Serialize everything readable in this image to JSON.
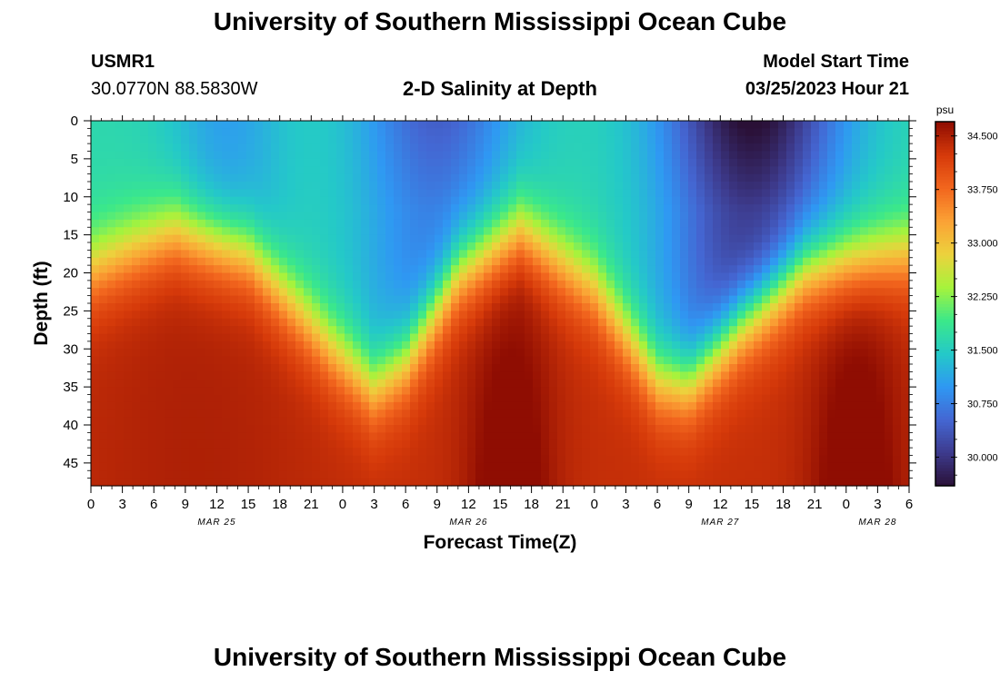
{
  "page": {
    "title": "University of Southern Mississippi Ocean Cube",
    "footer_title": "University of Southern Mississippi Ocean Cube"
  },
  "station": {
    "id": "USMR1",
    "coords": "30.0770N  88.5830W"
  },
  "model_start": {
    "label": "Model Start Time",
    "value": "03/25/2023 Hour 21"
  },
  "chart_data": {
    "type": "heatmap",
    "title": "2-D Salinity at Depth",
    "xlabel": "Forecast Time(Z)",
    "ylabel": "Depth (ft)",
    "x_tick_labels": [
      "0",
      "3",
      "6",
      "9",
      "12",
      "15",
      "18",
      "21",
      "0",
      "3",
      "6",
      "9",
      "12",
      "15",
      "18",
      "21",
      "0",
      "3",
      "6",
      "9",
      "12",
      "15",
      "18",
      "21",
      "0",
      "3",
      "6"
    ],
    "date_labels": [
      {
        "label": "MAR 25",
        "hours": 12
      },
      {
        "label": "MAR 26",
        "hours": 36
      },
      {
        "label": "MAR 27",
        "hours": 60
      },
      {
        "label": "MAR 28",
        "hours": 75
      }
    ],
    "xlim_hours": [
      0,
      78
    ],
    "ylim_ft": [
      0,
      48
    ],
    "y_ticks": [
      0,
      5,
      10,
      15,
      20,
      25,
      30,
      35,
      40,
      45
    ],
    "y_tick_labels": [
      "0",
      "5",
      "10",
      "15",
      "20",
      "25",
      "30",
      "35",
      "40",
      "45"
    ],
    "colorbar": {
      "unit": "psu",
      "range": [
        29.6,
        34.7
      ],
      "ticks": [
        34.5,
        33.75,
        33.0,
        32.25,
        31.5,
        30.75,
        30.0
      ],
      "tick_labels": [
        "34.500",
        "33.750",
        "33.000",
        "32.250",
        "31.500",
        "30.750",
        "30.000"
      ],
      "colors": [
        "#2a1036",
        "#3d3a8c",
        "#4466d2",
        "#2f98f3",
        "#24c9c8",
        "#3be88a",
        "#a6f33c",
        "#ecd23d",
        "#fba235",
        "#f2661e",
        "#d63a0a",
        "#8f0d02"
      ]
    },
    "interface_profile": {
      "x_hours": [
        0,
        8,
        15,
        23,
        27,
        30,
        35,
        41,
        48,
        54,
        57,
        62,
        68,
        72,
        78
      ],
      "mid_depth_ft": [
        19.5,
        14.5,
        17.5,
        30,
        35,
        31.5,
        20,
        14.5,
        22,
        34,
        34.5,
        26.5,
        19.5,
        18.5,
        17.5
      ]
    },
    "surface_fresh_minima": [
      {
        "hours": 33,
        "depth_ft": 1,
        "value": 30.0
      },
      {
        "hours": 63,
        "depth_ft": 2,
        "value": 29.7
      }
    ],
    "deep_salinity_maxima": [
      {
        "hours": 40,
        "depth_ft": 44,
        "value": 34.7
      },
      {
        "hours": 73,
        "depth_ft": 42,
        "value": 34.7
      }
    ]
  }
}
